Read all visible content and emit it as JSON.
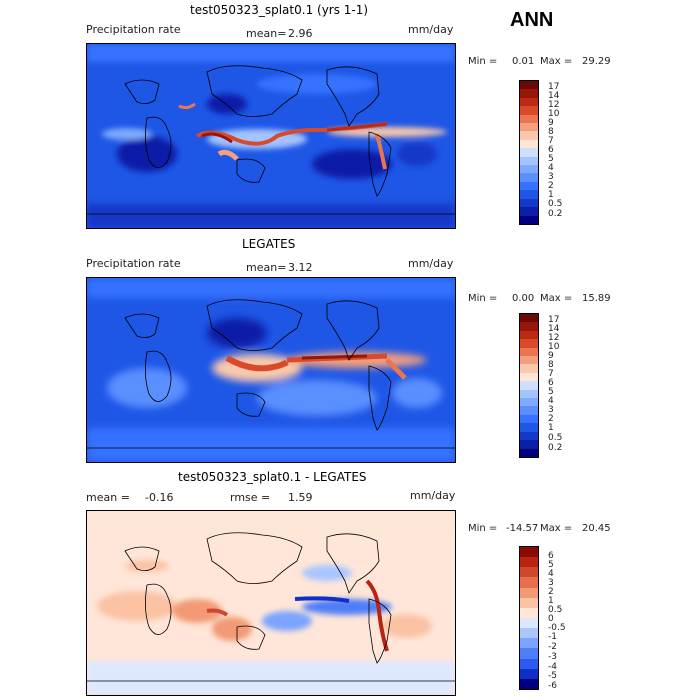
{
  "season": "ANN",
  "colors": {
    "precip": [
      "#00007f",
      "#0a1ea8",
      "#1438c8",
      "#1e56e6",
      "#3672ff",
      "#5a8fff",
      "#7eaaff",
      "#a4c4ff",
      "#cfe0ff",
      "#fde6d6",
      "#f9c8ac",
      "#f4a07c",
      "#ea7650",
      "#d84a2a",
      "#bc2a12",
      "#96160a",
      "#6a0a04"
    ],
    "diff": [
      "#00007f",
      "#102fc8",
      "#2f59ef",
      "#4f7ef8",
      "#7aa4ff",
      "#a9c6ff",
      "#dde8ff",
      "#ffe6d8",
      "#fbc2a4",
      "#f29a74",
      "#e6704c",
      "#d0482c",
      "#b82412",
      "#8c0a06"
    ]
  },
  "panels": [
    {
      "title": "test050323_splat0.1 (yrs 1-1)",
      "variable": "Precipitation rate",
      "mean_label": "mean=",
      "mean_value": "2.96",
      "units": "mm/day",
      "minmax_label": "Min =",
      "min": "0.01",
      "max_label": "Max =",
      "max": "29.29",
      "colorbar_labels": [
        "17",
        "14",
        "12",
        "10",
        "9",
        "8",
        "7",
        "6",
        "5",
        "4",
        "3",
        "2",
        "1",
        "0.5",
        "0.2"
      ]
    },
    {
      "title": "LEGATES",
      "variable": "Precipitation rate",
      "mean_label": "mean=",
      "mean_value": "3.12",
      "units": "mm/day",
      "minmax_label": "Min =",
      "min": "0.00",
      "max_label": "Max =",
      "max": "15.89",
      "colorbar_labels": [
        "17",
        "14",
        "12",
        "10",
        "9",
        "8",
        "7",
        "6",
        "5",
        "4",
        "3",
        "2",
        "1",
        "0.5",
        "0.2"
      ]
    },
    {
      "title": "test050323_splat0.1 - LEGATES",
      "mean_label": "mean =",
      "mean_value": "-0.16",
      "rmse_label": "rmse =",
      "rmse_value": "1.59",
      "units": "mm/day",
      "minmax_label": "Min =",
      "min": "-14.57",
      "max_label": "Max =",
      "max": "20.45",
      "colorbar_labels": [
        "6",
        "5",
        "4",
        "3",
        "2",
        "1",
        "0.5",
        "0",
        "-0.5",
        "-1",
        "-2",
        "-3",
        "-4",
        "-5",
        "-6"
      ]
    }
  ]
}
